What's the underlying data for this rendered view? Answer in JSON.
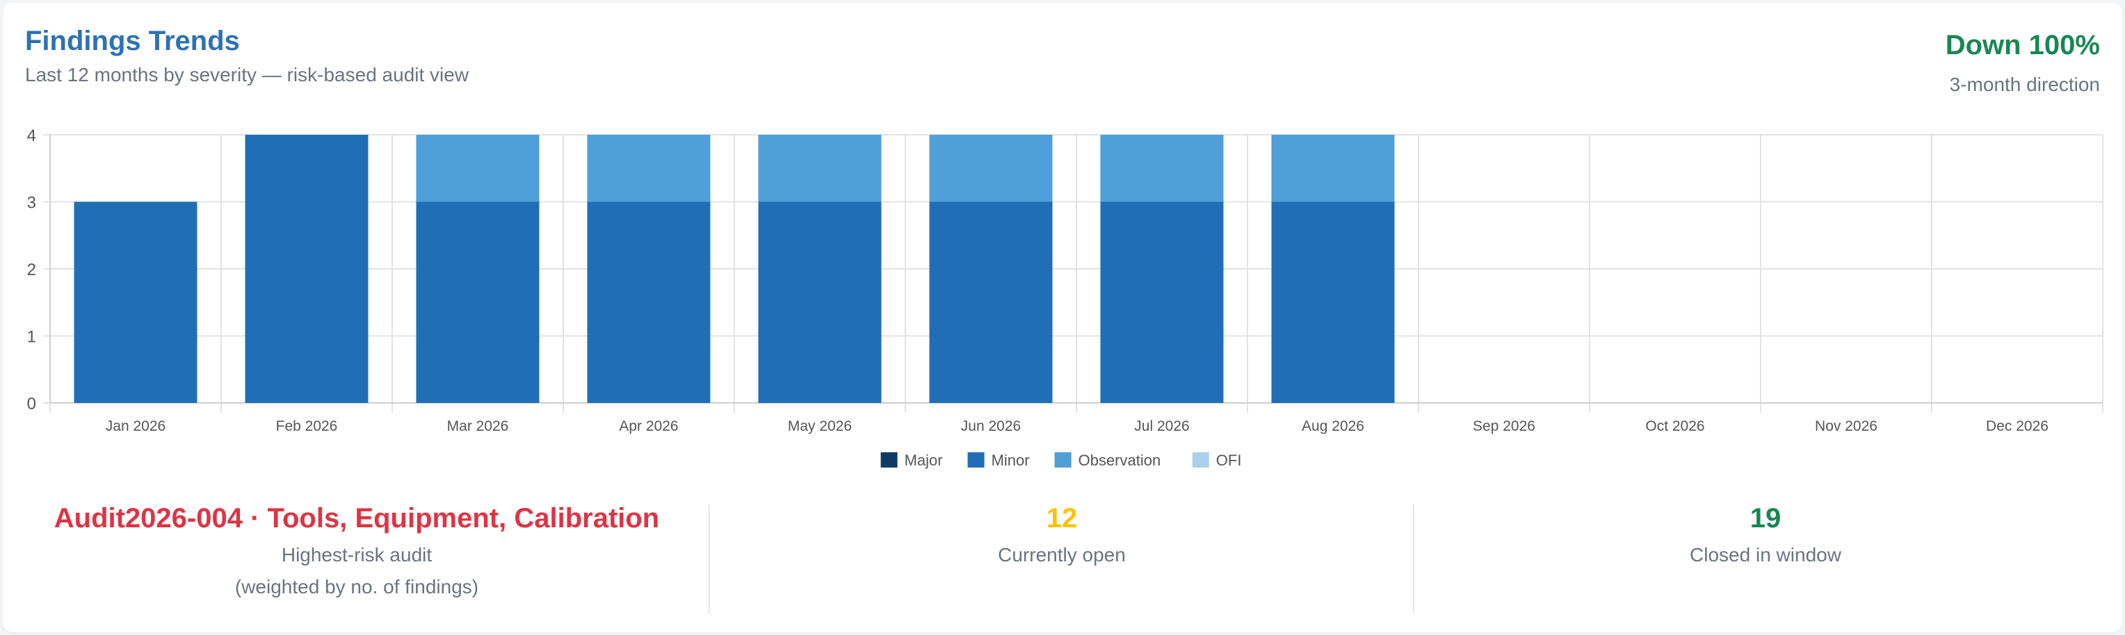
{
  "header": {
    "title": "Findings Trends",
    "subtitle": "Last 12 months by severity — risk-based audit view",
    "trend_value": "Down 100%",
    "trend_label": "3-month direction"
  },
  "colors": {
    "title": "#2d72b4",
    "trend_down": "#198754",
    "risk": "#dc3545",
    "open": "#ffc107",
    "closed": "#198754"
  },
  "chart_data": {
    "type": "bar",
    "stacked": true,
    "categories": [
      "Jan 2026",
      "Feb 2026",
      "Mar 2026",
      "Apr 2026",
      "May 2026",
      "Jun 2026",
      "Jul 2026",
      "Aug 2026",
      "Sep 2026",
      "Oct 2026",
      "Nov 2026",
      "Dec 2026"
    ],
    "series": [
      {
        "name": "Major",
        "color": "#0c3c65",
        "values": [
          0,
          0,
          0,
          0,
          0,
          0,
          0,
          0,
          0,
          0,
          0,
          0
        ]
      },
      {
        "name": "Minor",
        "color": "#206fb6",
        "values": [
          3,
          4,
          3,
          3,
          3,
          3,
          3,
          3,
          0,
          0,
          0,
          0
        ]
      },
      {
        "name": "Observation",
        "color": "#4f9fd8",
        "values": [
          0,
          0,
          1,
          1,
          1,
          1,
          1,
          1,
          0,
          0,
          0,
          0
        ]
      },
      {
        "name": "OFI",
        "color": "#a9d1ed",
        "values": [
          0,
          0,
          0,
          0,
          0,
          0,
          0,
          0,
          0,
          0,
          0,
          0
        ]
      }
    ],
    "ylim": [
      0,
      4
    ],
    "yticks": [
      "0",
      "1",
      "2",
      "3",
      "4"
    ],
    "grid": true,
    "legend_position": "bottom"
  },
  "stats": {
    "risk_audit": {
      "value": "Audit2026-004 · Tools, Equipment, Calibration",
      "label": "Highest-risk audit",
      "sublabel": "(weighted by no. of findings)"
    },
    "open": {
      "value": "12",
      "label": "Currently open"
    },
    "closed": {
      "value": "19",
      "label": "Closed in window"
    }
  }
}
